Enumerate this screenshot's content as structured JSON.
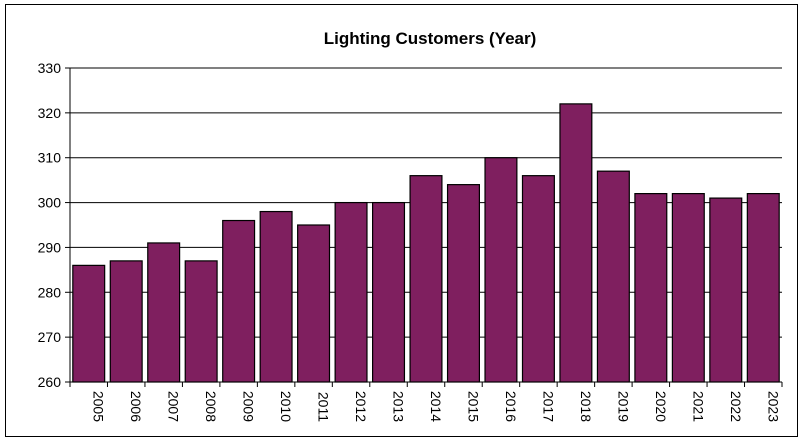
{
  "chart_data": {
    "type": "bar",
    "title": "Lighting Customers (Year)",
    "xlabel": "",
    "ylabel": "",
    "categories": [
      "2005",
      "2006",
      "2007",
      "2008",
      "2009",
      "2010",
      "2011",
      "2012",
      "2013",
      "2014",
      "2015",
      "2016",
      "2017",
      "2018",
      "2019",
      "2020",
      "2021",
      "2022",
      "2023"
    ],
    "values": [
      286,
      287,
      291,
      287,
      296,
      298,
      295,
      300,
      300,
      306,
      304,
      310,
      306,
      322,
      307,
      302,
      302,
      301,
      302
    ],
    "ylim": [
      260,
      330
    ],
    "yticks": [
      260,
      270,
      280,
      290,
      300,
      310,
      320,
      330
    ],
    "grid": true,
    "legend": "none",
    "bar_color": "#7f1f5f"
  }
}
